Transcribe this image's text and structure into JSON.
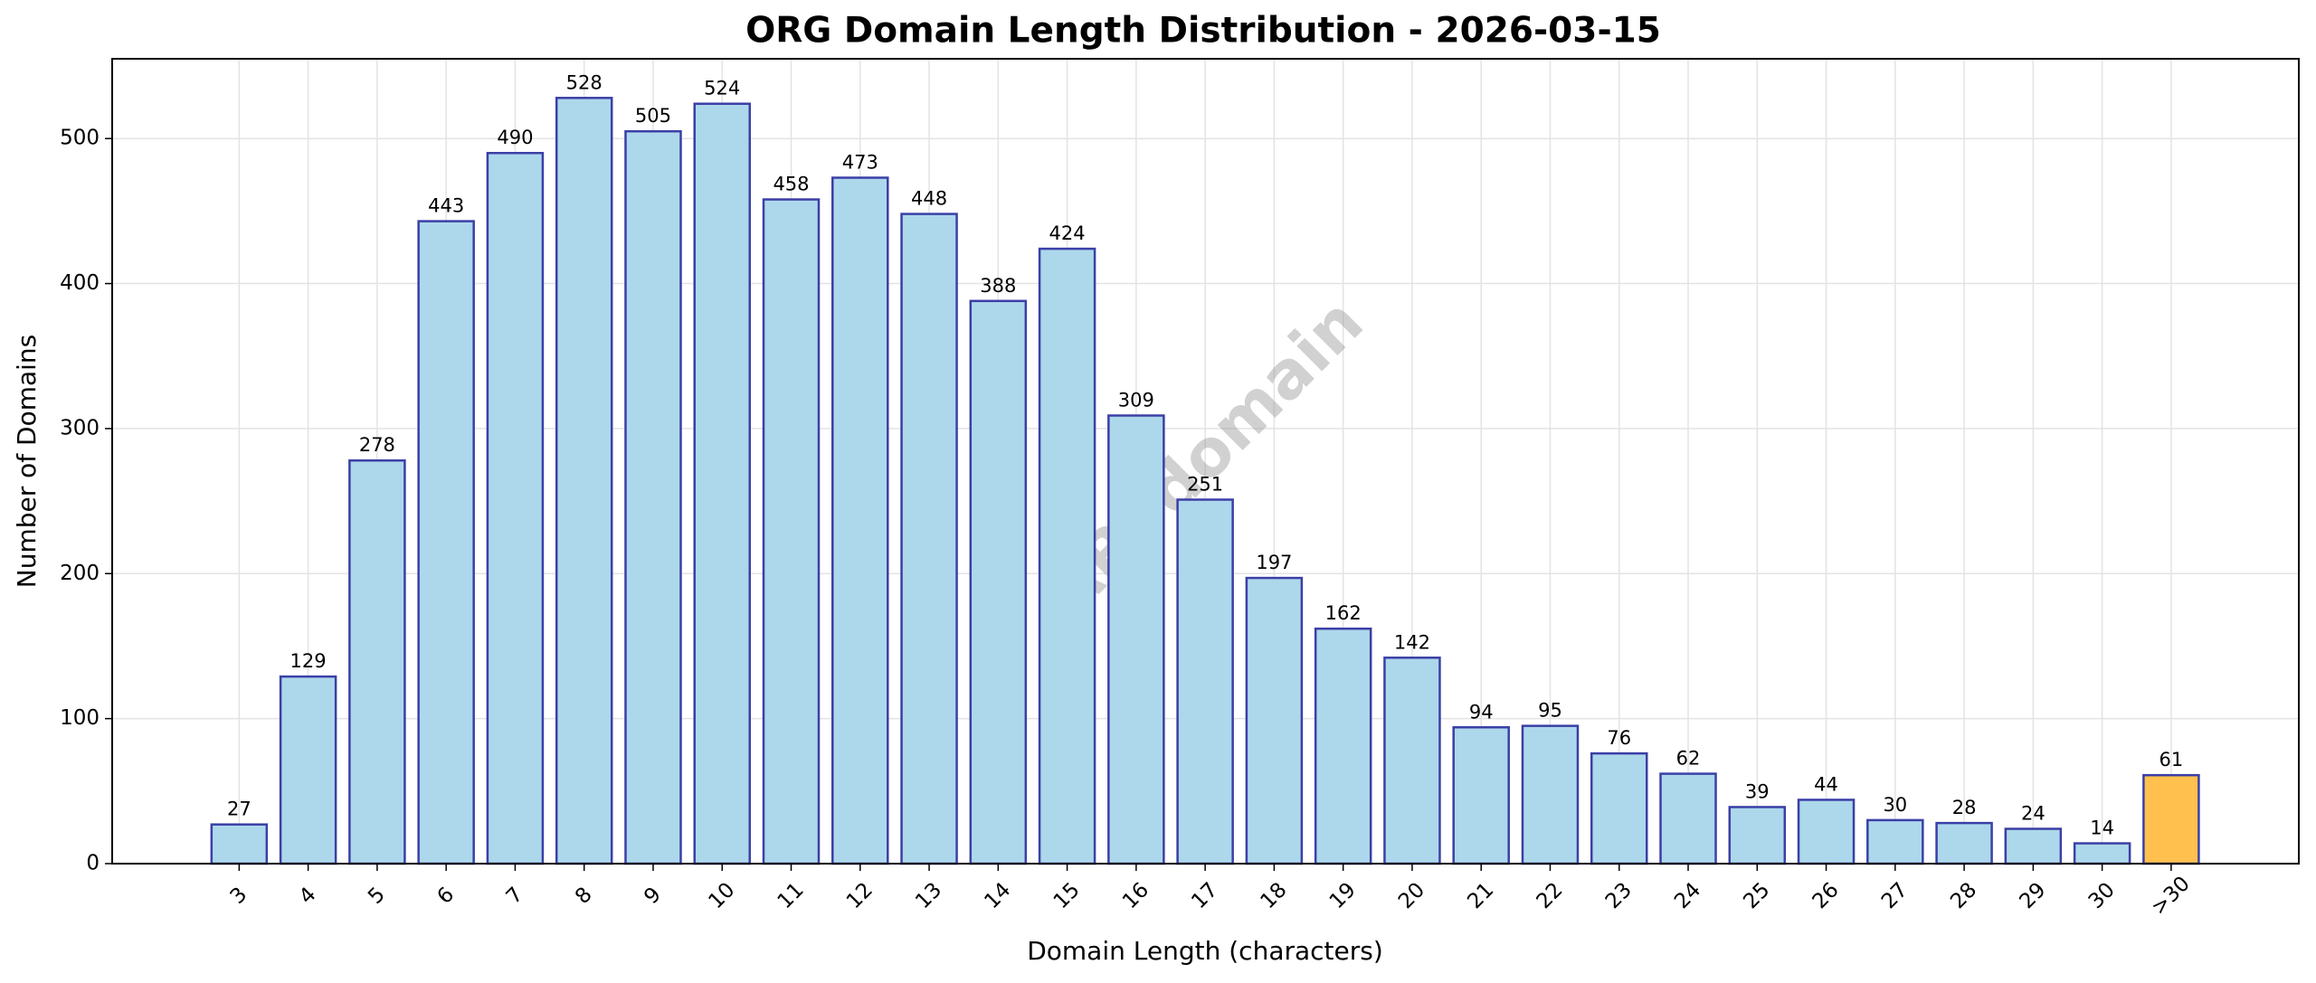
{
  "chart_data": {
    "type": "bar",
    "title": "ORG Domain Length Distribution - 2026-03-15",
    "x_label": "Domain Length (characters)",
    "y_label": "Number of Domains",
    "watermark": "ABTdomain",
    "categories": [
      "3",
      "4",
      "5",
      "6",
      "7",
      "8",
      "9",
      "10",
      "11",
      "12",
      "13",
      "14",
      "15",
      "16",
      "17",
      "18",
      "19",
      "20",
      "21",
      "22",
      "23",
      "24",
      "25",
      "26",
      "27",
      "28",
      "29",
      "30",
      ">30"
    ],
    "values": [
      27,
      129,
      278,
      443,
      490,
      528,
      505,
      524,
      458,
      473,
      448,
      388,
      424,
      309,
      251,
      197,
      162,
      142,
      94,
      95,
      76,
      62,
      39,
      44,
      30,
      28,
      24,
      14,
      61
    ],
    "colors": [
      "#add8eb",
      "#add8eb",
      "#add8eb",
      "#add8eb",
      "#add8eb",
      "#add8eb",
      "#add8eb",
      "#add8eb",
      "#add8eb",
      "#add8eb",
      "#add8eb",
      "#add8eb",
      "#add8eb",
      "#add8eb",
      "#add8eb",
      "#add8eb",
      "#add8eb",
      "#add8eb",
      "#add8eb",
      "#add8eb",
      "#add8eb",
      "#add8eb",
      "#add8eb",
      "#add8eb",
      "#add8eb",
      "#add8eb",
      "#add8eb",
      "#add8eb",
      "#ffc04d"
    ],
    "edge_color": "#3b3fa6",
    "ylim": [
      0,
      555
    ],
    "yticks": [
      0,
      100,
      200,
      300,
      400,
      500
    ],
    "grid": true
  }
}
